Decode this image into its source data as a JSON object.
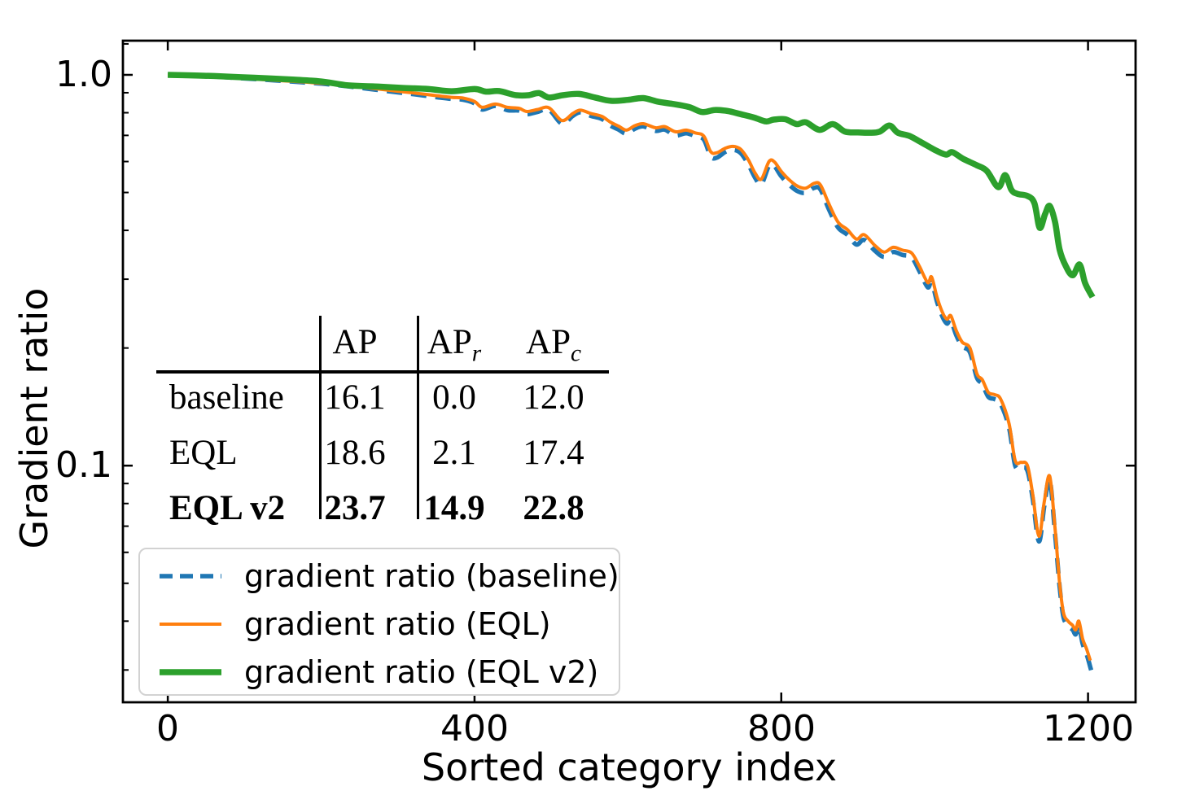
{
  "figure": {
    "background": "#ffffff",
    "spine_color": "#000000"
  },
  "table": {
    "headers": [
      {
        "base": "AP",
        "sub": ""
      },
      {
        "base": "AP",
        "sub": "r"
      },
      {
        "base": "AP",
        "sub": "c"
      }
    ],
    "rows": [
      {
        "name": "baseline",
        "values": [
          "16.1",
          "0.0",
          "12.0"
        ],
        "bold": false
      },
      {
        "name": "EQL",
        "values": [
          "18.6",
          "2.1",
          "17.4"
        ],
        "bold": false
      },
      {
        "name": "EQL v2",
        "values": [
          "23.7",
          "14.9",
          "22.8"
        ],
        "bold": true
      }
    ]
  },
  "chart_data": {
    "type": "line",
    "title": "",
    "xlabel": "Sorted category index",
    "ylabel": "Gradient ratio",
    "yscale": "log",
    "xlim": [
      -58.5,
      1262
    ],
    "ylim": [
      0.0248,
      1.223
    ],
    "grid": false,
    "legend_position": "lower left",
    "xticklabels": [
      "0",
      "400",
      "800",
      "1200"
    ],
    "xtick_values": [
      0,
      400,
      800,
      1200
    ],
    "yticklabels": [
      "1.0",
      "0.1"
    ],
    "ytick_values": [
      1.0,
      0.1
    ],
    "ytick_minor_values": [
      1.2,
      0.9,
      0.8,
      0.7,
      0.6,
      0.5,
      0.4,
      0.3,
      0.2,
      0.09,
      0.08,
      0.07,
      0.06,
      0.05,
      0.04,
      0.03
    ],
    "series": [
      {
        "name": "gradient ratio (baseline)",
        "color": "#1f77b4",
        "style": "dashed",
        "dash": "19 11",
        "line_width": 5.5,
        "points": [
          [
            0,
            1.0
          ],
          [
            30,
            0.995
          ],
          [
            60,
            0.99
          ],
          [
            90,
            0.982
          ],
          [
            120,
            0.974
          ],
          [
            150,
            0.965
          ],
          [
            180,
            0.956
          ],
          [
            210,
            0.946
          ],
          [
            240,
            0.932
          ],
          [
            270,
            0.917
          ],
          [
            300,
            0.902
          ],
          [
            325,
            0.89
          ],
          [
            350,
            0.877
          ],
          [
            370,
            0.868
          ],
          [
            385,
            0.864
          ],
          [
            400,
            0.846
          ],
          [
            410,
            0.815
          ],
          [
            427,
            0.833
          ],
          [
            443,
            0.812
          ],
          [
            458,
            0.81
          ],
          [
            468,
            0.793
          ],
          [
            482,
            0.804
          ],
          [
            497,
            0.814
          ],
          [
            514,
            0.75
          ],
          [
            528,
            0.785
          ],
          [
            538,
            0.802
          ],
          [
            552,
            0.785
          ],
          [
            566,
            0.771
          ],
          [
            577,
            0.742
          ],
          [
            588,
            0.724
          ],
          [
            598,
            0.707
          ],
          [
            609,
            0.728
          ],
          [
            620,
            0.738
          ],
          [
            636,
            0.719
          ],
          [
            648,
            0.724
          ],
          [
            662,
            0.7
          ],
          [
            676,
            0.709
          ],
          [
            688,
            0.697
          ],
          [
            699,
            0.683
          ],
          [
            708,
            0.618
          ],
          [
            716,
            0.614
          ],
          [
            727,
            0.635
          ],
          [
            737,
            0.643
          ],
          [
            747,
            0.631
          ],
          [
            757,
            0.59
          ],
          [
            766,
            0.545
          ],
          [
            774,
            0.525
          ],
          [
            784,
            0.585
          ],
          [
            791,
            0.584
          ],
          [
            800,
            0.55
          ],
          [
            812,
            0.52
          ],
          [
            822,
            0.503
          ],
          [
            832,
            0.499
          ],
          [
            843,
            0.514
          ],
          [
            851,
            0.509
          ],
          [
            862,
            0.453
          ],
          [
            874,
            0.407
          ],
          [
            886,
            0.39
          ],
          [
            898,
            0.368
          ],
          [
            908,
            0.378
          ],
          [
            922,
            0.355
          ],
          [
            934,
            0.342
          ],
          [
            946,
            0.352
          ],
          [
            958,
            0.346
          ],
          [
            970,
            0.341
          ],
          [
            980,
            0.315
          ],
          [
            991,
            0.286
          ],
          [
            996,
            0.296
          ],
          [
            1003,
            0.263
          ],
          [
            1010,
            0.241
          ],
          [
            1016,
            0.231
          ],
          [
            1021,
            0.236
          ],
          [
            1028,
            0.216
          ],
          [
            1036,
            0.202
          ],
          [
            1046,
            0.195
          ],
          [
            1055,
            0.168
          ],
          [
            1062,
            0.162
          ],
          [
            1070,
            0.15
          ],
          [
            1078,
            0.148
          ],
          [
            1086,
            0.144
          ],
          [
            1097,
            0.125
          ],
          [
            1105,
            0.1
          ],
          [
            1113,
            0.099
          ],
          [
            1121,
            0.097
          ],
          [
            1128,
            0.082
          ],
          [
            1136,
            0.064
          ],
          [
            1143,
            0.079
          ],
          [
            1150,
            0.092
          ],
          [
            1157,
            0.067
          ],
          [
            1163,
            0.049
          ],
          [
            1168,
            0.041
          ],
          [
            1174,
            0.039
          ],
          [
            1180,
            0.038
          ],
          [
            1184,
            0.037
          ],
          [
            1188,
            0.039
          ],
          [
            1193,
            0.035
          ],
          [
            1198,
            0.033
          ],
          [
            1203,
            0.0305
          ],
          [
            1206,
            0.029
          ]
        ]
      },
      {
        "name": "gradient ratio (EQL)",
        "color": "#ff7f0e",
        "style": "solid",
        "dash": null,
        "line_width": 4,
        "points": [
          [
            0,
            1.0
          ],
          [
            30,
            0.995
          ],
          [
            60,
            0.99
          ],
          [
            90,
            0.982
          ],
          [
            120,
            0.974
          ],
          [
            150,
            0.966
          ],
          [
            180,
            0.958
          ],
          [
            210,
            0.948
          ],
          [
            240,
            0.935
          ],
          [
            270,
            0.922
          ],
          [
            300,
            0.908
          ],
          [
            325,
            0.897
          ],
          [
            350,
            0.885
          ],
          [
            370,
            0.876
          ],
          [
            385,
            0.872
          ],
          [
            400,
            0.855
          ],
          [
            410,
            0.826
          ],
          [
            427,
            0.842
          ],
          [
            443,
            0.826
          ],
          [
            458,
            0.821
          ],
          [
            468,
            0.806
          ],
          [
            482,
            0.815
          ],
          [
            497,
            0.824
          ],
          [
            514,
            0.764
          ],
          [
            528,
            0.796
          ],
          [
            538,
            0.812
          ],
          [
            552,
            0.796
          ],
          [
            566,
            0.783
          ],
          [
            577,
            0.757
          ],
          [
            588,
            0.739
          ],
          [
            598,
            0.722
          ],
          [
            609,
            0.741
          ],
          [
            620,
            0.75
          ],
          [
            636,
            0.732
          ],
          [
            648,
            0.737
          ],
          [
            662,
            0.715
          ],
          [
            676,
            0.722
          ],
          [
            688,
            0.71
          ],
          [
            699,
            0.697
          ],
          [
            708,
            0.636
          ],
          [
            716,
            0.632
          ],
          [
            727,
            0.649
          ],
          [
            737,
            0.656
          ],
          [
            747,
            0.645
          ],
          [
            757,
            0.606
          ],
          [
            766,
            0.56
          ],
          [
            774,
            0.541
          ],
          [
            784,
            0.6
          ],
          [
            791,
            0.599
          ],
          [
            800,
            0.566
          ],
          [
            812,
            0.535
          ],
          [
            822,
            0.518
          ],
          [
            832,
            0.513
          ],
          [
            843,
            0.528
          ],
          [
            851,
            0.523
          ],
          [
            862,
            0.468
          ],
          [
            874,
            0.42
          ],
          [
            886,
            0.402
          ],
          [
            898,
            0.38
          ],
          [
            908,
            0.39
          ],
          [
            922,
            0.366
          ],
          [
            934,
            0.352
          ],
          [
            946,
            0.362
          ],
          [
            958,
            0.356
          ],
          [
            970,
            0.35
          ],
          [
            980,
            0.324
          ],
          [
            991,
            0.294
          ],
          [
            996,
            0.304
          ],
          [
            1003,
            0.27
          ],
          [
            1010,
            0.247
          ],
          [
            1016,
            0.237
          ],
          [
            1021,
            0.242
          ],
          [
            1028,
            0.222
          ],
          [
            1036,
            0.207
          ],
          [
            1046,
            0.2
          ],
          [
            1055,
            0.172
          ],
          [
            1062,
            0.166
          ],
          [
            1070,
            0.154
          ],
          [
            1078,
            0.152
          ],
          [
            1086,
            0.148
          ],
          [
            1097,
            0.128
          ],
          [
            1105,
            0.103
          ],
          [
            1113,
            0.102
          ],
          [
            1121,
            0.1
          ],
          [
            1128,
            0.084
          ],
          [
            1136,
            0.066
          ],
          [
            1143,
            0.081
          ],
          [
            1150,
            0.094
          ],
          [
            1157,
            0.069
          ],
          [
            1163,
            0.05
          ],
          [
            1168,
            0.042
          ],
          [
            1174,
            0.04
          ],
          [
            1180,
            0.039
          ],
          [
            1184,
            0.038
          ],
          [
            1188,
            0.04
          ],
          [
            1193,
            0.036
          ],
          [
            1198,
            0.034
          ],
          [
            1203,
            0.0317
          ]
        ]
      },
      {
        "name": "gradient ratio (EQL v2)",
        "color": "#2ca02c",
        "style": "solid",
        "dash": null,
        "line_width": 7.5,
        "points": [
          [
            0,
            1.0
          ],
          [
            30,
            0.997
          ],
          [
            60,
            0.993
          ],
          [
            95,
            0.986
          ],
          [
            130,
            0.98
          ],
          [
            165,
            0.972
          ],
          [
            200,
            0.962
          ],
          [
            235,
            0.94
          ],
          [
            270,
            0.934
          ],
          [
            305,
            0.926
          ],
          [
            340,
            0.92
          ],
          [
            370,
            0.908
          ],
          [
            400,
            0.92
          ],
          [
            415,
            0.906
          ],
          [
            432,
            0.909
          ],
          [
            453,
            0.888
          ],
          [
            470,
            0.887
          ],
          [
            484,
            0.898
          ],
          [
            497,
            0.875
          ],
          [
            515,
            0.887
          ],
          [
            536,
            0.894
          ],
          [
            557,
            0.875
          ],
          [
            578,
            0.858
          ],
          [
            600,
            0.863
          ],
          [
            620,
            0.872
          ],
          [
            640,
            0.853
          ],
          [
            660,
            0.842
          ],
          [
            680,
            0.827
          ],
          [
            697,
            0.803
          ],
          [
            713,
            0.813
          ],
          [
            730,
            0.808
          ],
          [
            745,
            0.795
          ],
          [
            765,
            0.777
          ],
          [
            780,
            0.76
          ],
          [
            790,
            0.768
          ],
          [
            805,
            0.77
          ],
          [
            820,
            0.748
          ],
          [
            832,
            0.756
          ],
          [
            850,
            0.723
          ],
          [
            867,
            0.748
          ],
          [
            883,
            0.716
          ],
          [
            900,
            0.712
          ],
          [
            915,
            0.711
          ],
          [
            928,
            0.715
          ],
          [
            941,
            0.742
          ],
          [
            952,
            0.711
          ],
          [
            967,
            0.698
          ],
          [
            983,
            0.671
          ],
          [
            1002,
            0.64
          ],
          [
            1015,
            0.625
          ],
          [
            1023,
            0.634
          ],
          [
            1037,
            0.61
          ],
          [
            1055,
            0.587
          ],
          [
            1068,
            0.568
          ],
          [
            1083,
            0.516
          ],
          [
            1092,
            0.554
          ],
          [
            1100,
            0.508
          ],
          [
            1108,
            0.496
          ],
          [
            1121,
            0.49
          ],
          [
            1130,
            0.47
          ],
          [
            1137,
            0.406
          ],
          [
            1144,
            0.44
          ],
          [
            1150,
            0.462
          ],
          [
            1157,
            0.42
          ],
          [
            1163,
            0.357
          ],
          [
            1171,
            0.324
          ],
          [
            1180,
            0.307
          ],
          [
            1189,
            0.327
          ],
          [
            1196,
            0.294
          ],
          [
            1203,
            0.276
          ],
          [
            1206,
            0.27
          ]
        ]
      }
    ]
  }
}
